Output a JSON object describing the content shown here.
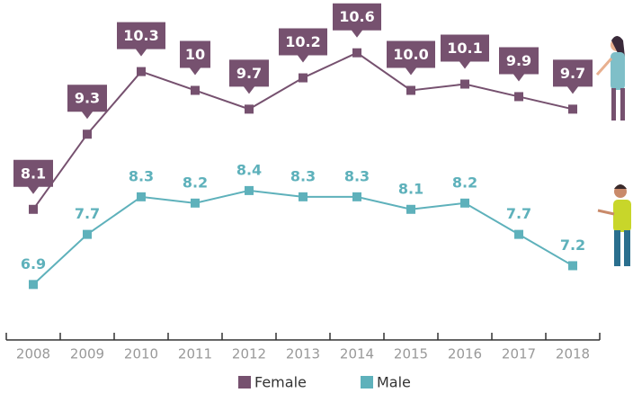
{
  "chart_data": {
    "type": "line",
    "categories": [
      "2008",
      "2009",
      "2010",
      "2011",
      "2012",
      "2013",
      "2014",
      "2015",
      "2016",
      "2017",
      "2018"
    ],
    "series": [
      {
        "name": "Female",
        "color": "#76516f",
        "values": [
          8.1,
          9.3,
          10.3,
          10,
          9.7,
          10.2,
          10.6,
          10.0,
          10.1,
          9.9,
          9.7
        ],
        "value_labels": [
          "8.1",
          "9.3",
          "10.3",
          "10",
          "9.7",
          "10.2",
          "10.6",
          "10.0",
          "10.1",
          "9.9",
          "9.7"
        ]
      },
      {
        "name": "Male",
        "color": "#5eb1bb",
        "values": [
          6.9,
          7.7,
          8.3,
          8.2,
          8.4,
          8.3,
          8.3,
          8.1,
          8.2,
          7.7,
          7.2
        ]
      }
    ],
    "ylim": [
      6,
      11.4
    ],
    "grid": false
  }
}
